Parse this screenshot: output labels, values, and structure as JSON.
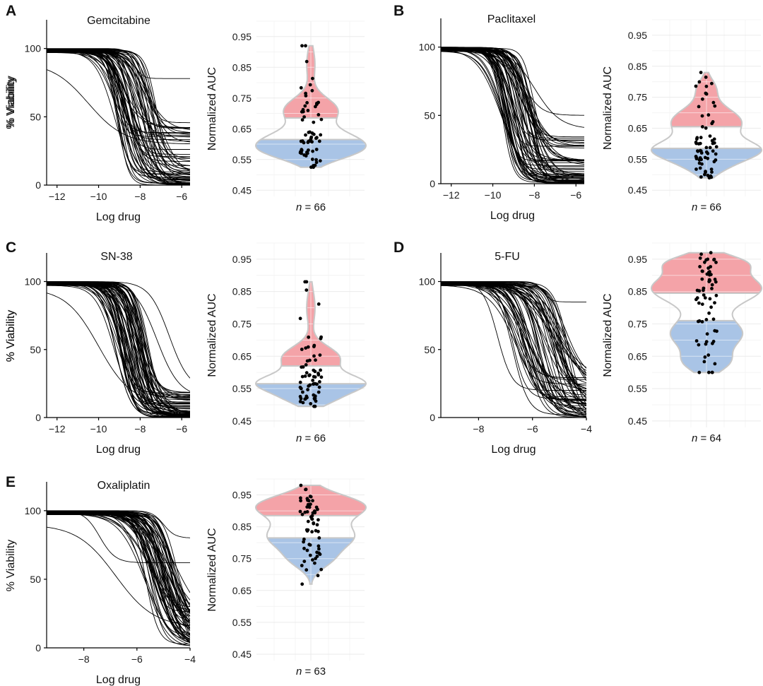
{
  "figure": {
    "panels": [
      {
        "letter": "A",
        "drug": "Gemcitabine",
        "n_label": "n = 66"
      },
      {
        "letter": "B",
        "drug": "Paclitaxel",
        "n_label": "n = 66"
      },
      {
        "letter": "C",
        "drug": "SN-38",
        "n_label": "n = 66"
      },
      {
        "letter": "D",
        "drug": "5-FU",
        "n_label": "n = 64"
      },
      {
        "letter": "E",
        "drug": "Oxaliplatin",
        "n_label": "n = 63"
      }
    ],
    "curve_ylabel": "% Viability",
    "curve_xlabel": "Log drug",
    "violin_ylabel": "Normalized AUC",
    "n_prefix": "n",
    "colors": {
      "high": "#f4a3a8",
      "low": "#a9c4e6",
      "outline": "#c8c8c8",
      "curve": "#000000"
    }
  },
  "chart_data": [
    {
      "type": "line",
      "panel": "A",
      "title": "Gemcitabine",
      "xlabel": "Log drug",
      "ylabel": "% Viability",
      "xlim": [
        -12.5,
        -5.6
      ],
      "ylim": [
        0,
        120
      ],
      "xticks": [
        -12,
        -10,
        -8,
        -6
      ],
      "yticks": [
        0,
        50,
        100
      ],
      "n_curves": 66,
      "ec50_range": [
        -9.4,
        -7.2
      ],
      "bottom_range": [
        0,
        48
      ],
      "outliers": [
        {
          "top": 90,
          "bottom": 30,
          "ec50": -10.5,
          "hill": 0.5
        },
        {
          "top": 100,
          "bottom": 78,
          "ec50": -8.3,
          "hill": 2.2
        }
      ]
    },
    {
      "type": "scatter",
      "subtype": "violin",
      "panel": "A",
      "ylabel": "Normalized AUC",
      "ylim": [
        0.43,
        1.0
      ],
      "yticks": [
        0.45,
        0.55,
        0.65,
        0.75,
        0.85,
        0.95
      ],
      "n": 66,
      "min": 0.525,
      "max": 0.92,
      "low_cut": 0.615,
      "high_cut": 0.685,
      "density_peaks": [
        [
          0.61,
          1.0,
          0.035
        ],
        [
          0.71,
          0.65,
          0.04
        ],
        [
          0.57,
          0.6,
          0.03
        ],
        [
          0.86,
          0.1,
          0.05
        ]
      ]
    },
    {
      "type": "line",
      "panel": "B",
      "title": "Paclitaxel",
      "xlabel": "Log drug",
      "ylabel": "% Viability",
      "xlim": [
        -12.5,
        -5.6
      ],
      "ylim": [
        0,
        120
      ],
      "xticks": [
        -12,
        -10,
        -8,
        -6
      ],
      "yticks": [
        0,
        50,
        100
      ],
      "n_curves": 66,
      "ec50_range": [
        -9.6,
        -8.0
      ],
      "bottom_range": [
        0,
        35
      ],
      "outliers": [
        {
          "top": 100,
          "bottom": 40,
          "ec50": -8.0,
          "hill": 0.7
        },
        {
          "top": 100,
          "bottom": 50,
          "ec50": -8.6,
          "hill": 1.0
        }
      ]
    },
    {
      "type": "scatter",
      "subtype": "violin",
      "panel": "B",
      "ylabel": "Normalized AUC",
      "ylim": [
        0.43,
        1.0
      ],
      "yticks": [
        0.45,
        0.55,
        0.65,
        0.75,
        0.85,
        0.95
      ],
      "n": 66,
      "min": 0.49,
      "max": 0.83,
      "low_cut": 0.585,
      "high_cut": 0.655,
      "density_peaks": [
        [
          0.58,
          1.0,
          0.03
        ],
        [
          0.67,
          0.75,
          0.045
        ],
        [
          0.53,
          0.35,
          0.03
        ],
        [
          0.78,
          0.18,
          0.03
        ]
      ]
    },
    {
      "type": "line",
      "panel": "C",
      "title": "SN-38",
      "xlabel": "Log drug",
      "ylabel": "% Viability",
      "xlim": [
        -12.5,
        -5.6
      ],
      "ylim": [
        0,
        120
      ],
      "xticks": [
        -12,
        -10,
        -8,
        -6
      ],
      "yticks": [
        0,
        50,
        100
      ],
      "n_curves": 66,
      "ec50_range": [
        -9.3,
        -7.6
      ],
      "bottom_range": [
        0,
        20
      ],
      "outliers": [
        {
          "top": 100,
          "bottom": 15,
          "ec50": -7.2,
          "hill": 0.8
        },
        {
          "top": 100,
          "bottom": 20,
          "ec50": -6.6,
          "hill": 0.9
        },
        {
          "top": 95,
          "bottom": 10,
          "ec50": -10.0,
          "hill": 0.55
        }
      ]
    },
    {
      "type": "scatter",
      "subtype": "violin",
      "panel": "C",
      "ylabel": "Normalized AUC",
      "ylim": [
        0.43,
        1.0
      ],
      "yticks": [
        0.45,
        0.55,
        0.65,
        0.75,
        0.85,
        0.95
      ],
      "n": 66,
      "min": 0.495,
      "max": 0.88,
      "low_cut": 0.565,
      "high_cut": 0.62,
      "density_peaks": [
        [
          0.565,
          1.0,
          0.028
        ],
        [
          0.645,
          0.55,
          0.035
        ],
        [
          0.515,
          0.3,
          0.022
        ],
        [
          0.8,
          0.08,
          0.05
        ]
      ]
    },
    {
      "type": "line",
      "panel": "D",
      "title": "5-FU",
      "xlabel": "Log drug",
      "ylabel": "% Viability",
      "xlim": [
        -9.4,
        -4.0
      ],
      "ylim": [
        0,
        120
      ],
      "xticks": [
        -8,
        -6,
        -4
      ],
      "yticks": [
        0,
        50,
        100
      ],
      "n_curves": 64,
      "ec50_range": [
        -6.8,
        -4.6
      ],
      "bottom_range": [
        0,
        30
      ],
      "outliers": [
        {
          "top": 100,
          "bottom": 85,
          "ec50": -5.6,
          "hill": 3.0
        },
        {
          "top": 100,
          "bottom": 20,
          "ec50": -7.3,
          "hill": 1.6
        }
      ]
    },
    {
      "type": "scatter",
      "subtype": "violin",
      "panel": "D",
      "ylabel": "Normalized AUC",
      "ylim": [
        0.43,
        1.0
      ],
      "yticks": [
        0.45,
        0.55,
        0.65,
        0.75,
        0.85,
        0.95
      ],
      "n": 64,
      "min": 0.6,
      "max": 0.97,
      "low_cut": 0.76,
      "high_cut": 0.845,
      "density_peaks": [
        [
          0.86,
          1.0,
          0.045
        ],
        [
          0.72,
          0.65,
          0.045
        ],
        [
          0.63,
          0.35,
          0.03
        ],
        [
          0.94,
          0.55,
          0.025
        ]
      ]
    },
    {
      "type": "line",
      "panel": "E",
      "title": "Oxaliplatin",
      "xlabel": "Log drug",
      "ylabel": "% Viability",
      "xlim": [
        -9.4,
        -4.0
      ],
      "ylim": [
        0,
        120
      ],
      "xticks": [
        -8,
        -6,
        -4
      ],
      "yticks": [
        0,
        50,
        100
      ],
      "n_curves": 63,
      "ec50_range": [
        -5.7,
        -4.5
      ],
      "bottom_range": [
        0,
        30
      ],
      "outliers": [
        {
          "top": 100,
          "bottom": 62,
          "ec50": -7.4,
          "hill": 1.5
        },
        {
          "top": 100,
          "bottom": 80,
          "ec50": -5.0,
          "hill": 2.0
        },
        {
          "top": 90,
          "bottom": 15,
          "ec50": -6.8,
          "hill": 0.6
        }
      ]
    },
    {
      "type": "scatter",
      "subtype": "violin",
      "panel": "E",
      "ylabel": "Normalized AUC",
      "ylim": [
        0.43,
        1.0
      ],
      "yticks": [
        0.45,
        0.55,
        0.65,
        0.75,
        0.85,
        0.95
      ],
      "n": 63,
      "min": 0.67,
      "max": 0.98,
      "low_cut": 0.815,
      "high_cut": 0.885,
      "density_peaks": [
        [
          0.915,
          1.0,
          0.035
        ],
        [
          0.82,
          0.8,
          0.04
        ],
        [
          0.745,
          0.3,
          0.03
        ]
      ]
    }
  ]
}
